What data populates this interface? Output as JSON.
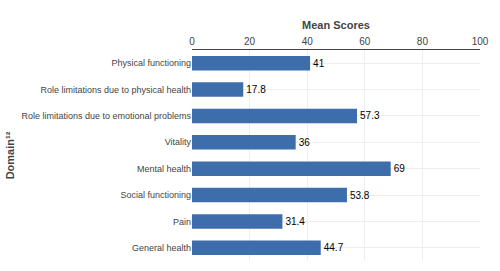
{
  "chart_data": {
    "type": "bar",
    "orientation": "horizontal",
    "categories": [
      "General health",
      "Pain",
      "Social functioning",
      "Mental health",
      "Vitality",
      "Role limitations due to emotional problems",
      "Role limitations due to physical health",
      "Physical functioning"
    ],
    "values": [
      44.7,
      31.4,
      53.8,
      69,
      36,
      57.3,
      17.8,
      41
    ],
    "color": "#3E6DAB",
    "xlabel": "Mean Scores",
    "ylabel": "Domain¹²",
    "xlim": [
      0,
      100
    ],
    "xticks": [
      0,
      20,
      40,
      60,
      80,
      100
    ],
    "grid": true,
    "data_labels": true
  }
}
